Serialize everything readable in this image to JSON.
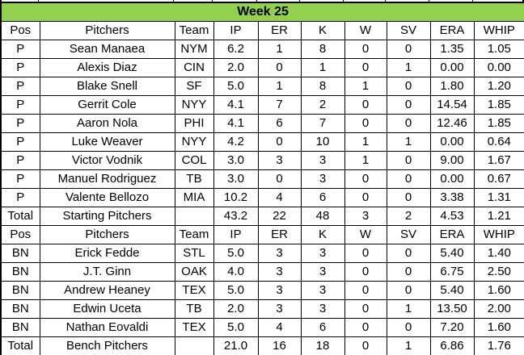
{
  "colors": {
    "header_green": "#92D050",
    "border": "#000000",
    "background": "#FFFFFF",
    "text": "#000000"
  },
  "table": {
    "title": "Week 25",
    "column_keys": [
      "pos",
      "pitchers",
      "team",
      "ip",
      "er",
      "k",
      "w",
      "sv",
      "era",
      "whip"
    ],
    "sections": [
      {
        "name": "starting-pitchers",
        "header": [
          "Pos",
          "Pitchers",
          "Team",
          "IP",
          "ER",
          "K",
          "W",
          "SV",
          "ERA",
          "WHIP"
        ],
        "rows": [
          [
            "P",
            "Sean Manaea",
            "NYM",
            "6.2",
            "1",
            "8",
            "0",
            "0",
            "1.35",
            "1.05"
          ],
          [
            "P",
            "Alexis Diaz",
            "CIN",
            "2.0",
            "0",
            "1",
            "0",
            "1",
            "0.00",
            "0.00"
          ],
          [
            "P",
            "Blake Snell",
            "SF",
            "5.0",
            "1",
            "8",
            "1",
            "0",
            "1.80",
            "1.20"
          ],
          [
            "P",
            "Gerrit Cole",
            "NYY",
            "4.1",
            "7",
            "2",
            "0",
            "0",
            "14.54",
            "1.85"
          ],
          [
            "P",
            "Aaron Nola",
            "PHI",
            "4.1",
            "6",
            "7",
            "0",
            "0",
            "12.46",
            "1.85"
          ],
          [
            "P",
            "Luke Weaver",
            "NYY",
            "4.2",
            "0",
            "10",
            "1",
            "1",
            "0.00",
            "0.64"
          ],
          [
            "P",
            "Victor Vodnik",
            "COL",
            "3.0",
            "3",
            "3",
            "1",
            "0",
            "9.00",
            "1.67"
          ],
          [
            "P",
            "Manuel Rodriguez",
            "TB",
            "3.0",
            "0",
            "3",
            "0",
            "0",
            "0.00",
            "0.67"
          ],
          [
            "P",
            "Valente Bellozo",
            "MIA",
            "10.2",
            "4",
            "6",
            "0",
            "0",
            "3.38",
            "1.31"
          ]
        ],
        "total": [
          "Total",
          "Starting Pitchers",
          "",
          "43.2",
          "22",
          "48",
          "3",
          "2",
          "4.53",
          "1.21"
        ]
      },
      {
        "name": "bench-pitchers",
        "header": [
          "Pos",
          "Pitchers",
          "Team",
          "IP",
          "ER",
          "K",
          "W",
          "SV",
          "ERA",
          "WHIP"
        ],
        "rows": [
          [
            "BN",
            "Erick Fedde",
            "STL",
            "5.0",
            "3",
            "3",
            "0",
            "0",
            "5.40",
            "1.40"
          ],
          [
            "BN",
            "J.T. Ginn",
            "OAK",
            "4.0",
            "3",
            "3",
            "0",
            "0",
            "6.75",
            "2.50"
          ],
          [
            "BN",
            "Andrew Heaney",
            "TEX",
            "5.0",
            "3",
            "3",
            "0",
            "0",
            "5.40",
            "1.60"
          ],
          [
            "BN",
            "Edwin Uceta",
            "TB",
            "2.0",
            "3",
            "3",
            "0",
            "1",
            "13.50",
            "2.00"
          ],
          [
            "BN",
            "Nathan Eovaldi",
            "TEX",
            "5.0",
            "4",
            "6",
            "0",
            "0",
            "7.20",
            "1.60"
          ]
        ],
        "total": [
          "Total",
          "Bench Pitchers",
          "",
          "21.0",
          "16",
          "18",
          "0",
          "1",
          "6.86",
          "1.76"
        ]
      }
    ]
  }
}
